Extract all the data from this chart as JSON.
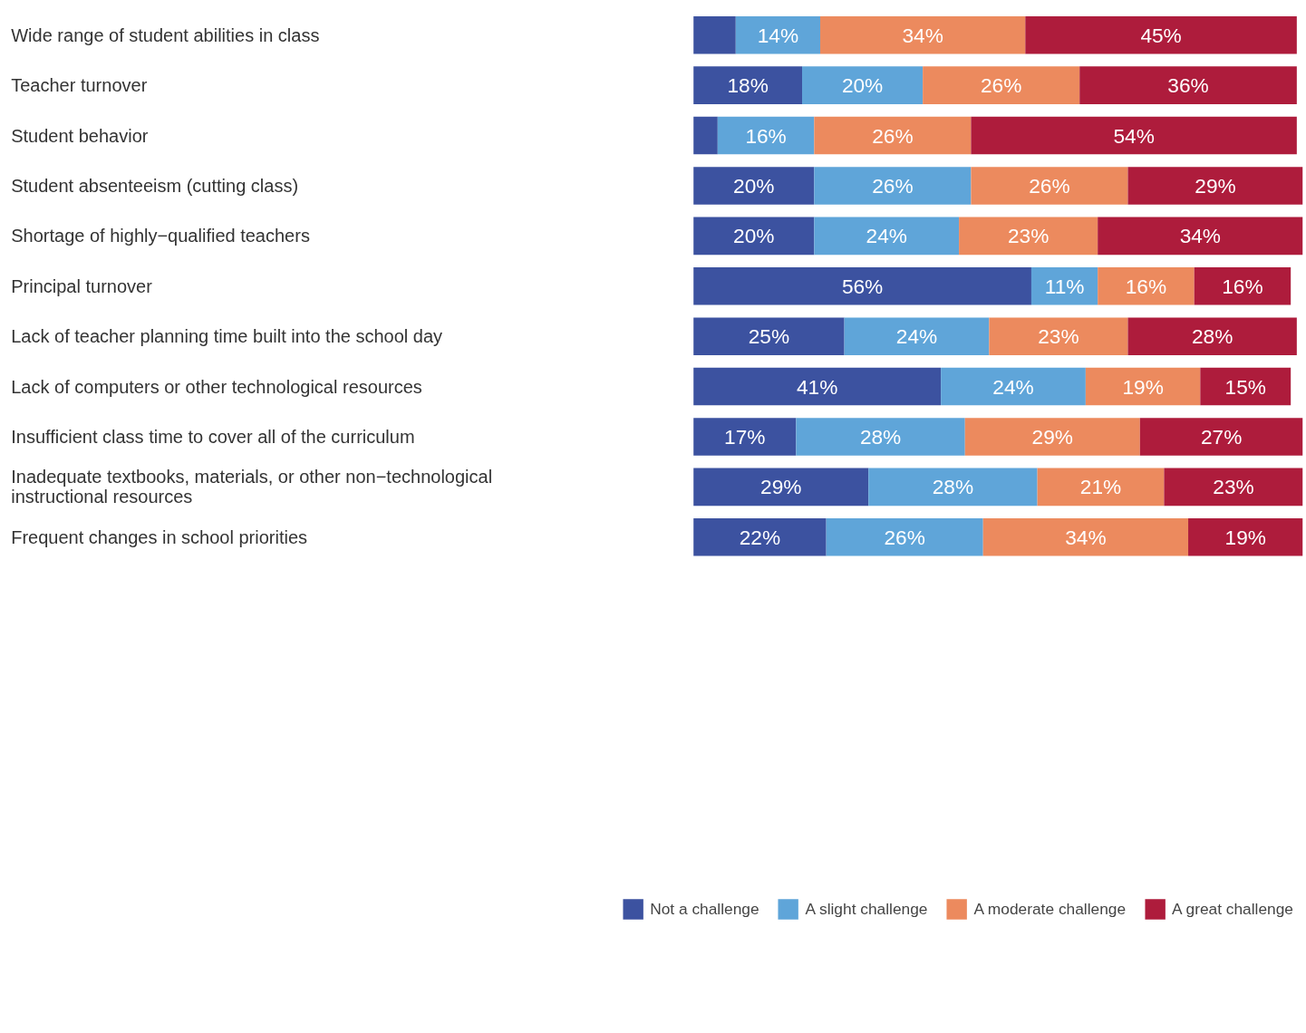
{
  "chart_data": {
    "type": "bar",
    "orientation": "horizontal",
    "stacked": true,
    "legend": "bottom",
    "grid": false,
    "categories": [
      "Wide range of student abilities in class",
      "Teacher turnover",
      "Student behavior",
      "Student absenteeism (cutting class)",
      "Shortage of highly−qualified teachers",
      "Principal turnover",
      "Lack of teacher planning time built into the school day",
      "Lack of computers or other technological resources",
      "Insufficient class time to cover all of the curriculum",
      "Inadequate textbooks, materials, or other non−technological instructional resources",
      "Frequent changes in school priorities"
    ],
    "series": [
      {
        "name": "Not a challenge",
        "color": "#3c52a0",
        "values": [
          7,
          18,
          4,
          20,
          20,
          56,
          25,
          41,
          17,
          29,
          22
        ],
        "value_labels": [
          null,
          "18%",
          null,
          "20%",
          "20%",
          "56%",
          "25%",
          "41%",
          "17%",
          "29%",
          "22%"
        ]
      },
      {
        "name": "A slight challenge",
        "color": "#5fa5d9",
        "values": [
          14,
          20,
          16,
          26,
          24,
          11,
          24,
          24,
          28,
          28,
          26
        ],
        "value_labels": [
          "14%",
          "20%",
          "16%",
          "26%",
          "24%",
          "11%",
          "24%",
          "24%",
          "28%",
          "28%",
          "26%"
        ]
      },
      {
        "name": "A moderate challenge",
        "color": "#ec8a5e",
        "values": [
          34,
          26,
          26,
          26,
          23,
          16,
          23,
          19,
          29,
          21,
          34
        ],
        "value_labels": [
          "34%",
          "26%",
          "26%",
          "26%",
          "23%",
          "16%",
          "23%",
          "19%",
          "29%",
          "21%",
          "34%"
        ]
      },
      {
        "name": "A great challenge",
        "color": "#ae1c3c",
        "values": [
          45,
          36,
          54,
          29,
          34,
          16,
          28,
          15,
          27,
          23,
          19
        ],
        "value_labels": [
          "45%",
          "36%",
          "54%",
          "29%",
          "34%",
          "16%",
          "28%",
          "15%",
          "27%",
          "23%",
          "19%"
        ]
      }
    ]
  }
}
